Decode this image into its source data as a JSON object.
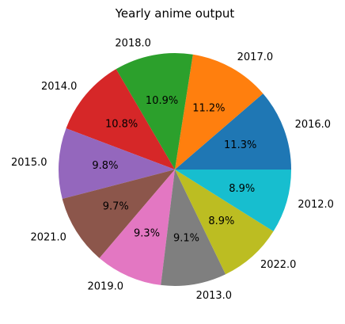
{
  "chart_data": {
    "type": "pie",
    "title": "Yearly anime output",
    "categories": [
      "2016.0",
      "2017.0",
      "2018.0",
      "2014.0",
      "2015.0",
      "2021.0",
      "2019.0",
      "2013.0",
      "2022.0",
      "2012.0"
    ],
    "values": [
      11.3,
      11.2,
      10.9,
      10.8,
      9.8,
      9.7,
      9.3,
      9.1,
      8.9,
      8.9
    ],
    "value_labels": [
      "11.3%",
      "11.2%",
      "10.9%",
      "10.8%",
      "9.8%",
      "9.7%",
      "9.3%",
      "9.1%",
      "8.9%",
      "8.9%"
    ],
    "colors": [
      "#1f77b4",
      "#ff7f0e",
      "#2ca02c",
      "#d62728",
      "#9467bd",
      "#8c564b",
      "#e377c2",
      "#7f7f7f",
      "#bcbd22",
      "#17becf"
    ],
    "start_angle_deg": 0,
    "direction": "counterclockwise",
    "legend": "none"
  }
}
